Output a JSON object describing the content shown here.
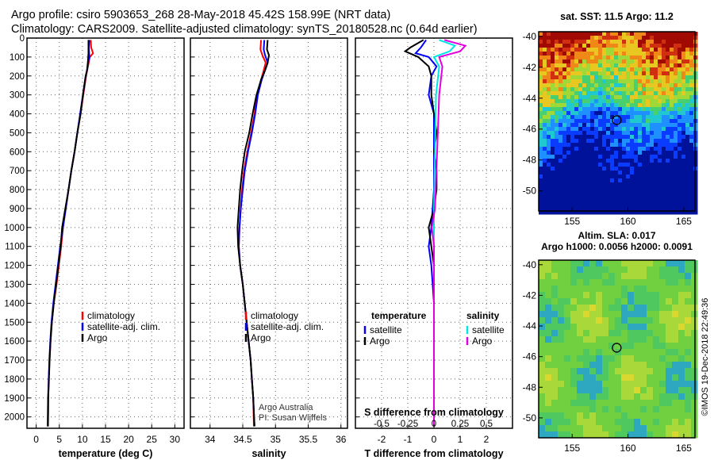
{
  "title": {
    "line1": "Argo profile: csiro 5903653_268 28-May-2018 45.42S 158.99E (NRT data)",
    "line2": "Climatology: CARS2009. Satellite-adjusted climatology: synTS_20180528.nc (0.64d earlier)"
  },
  "credit": {
    "line1": "Argo Australia",
    "line2": "PI: Susan Wijffels"
  },
  "imos_stamp": "©IMOS 19-Dec-2018 22:49:36",
  "colors": {
    "climatology": "#ff0000",
    "satellite": "#0000ff",
    "argo": "#000000",
    "sal_satellite": "#00e5e5",
    "sal_argo": "#e000e0"
  },
  "chart_data": [
    {
      "type": "line",
      "id": "temperature",
      "xlabel": "temperature (deg C)",
      "xlim": [
        -2,
        32
      ],
      "ylim": [
        2060,
        0
      ],
      "xticks": [
        0,
        5,
        10,
        15,
        20,
        25,
        30
      ],
      "yticks": [
        0,
        100,
        200,
        300,
        400,
        500,
        600,
        700,
        800,
        900,
        1000,
        1100,
        1200,
        1300,
        1400,
        1500,
        1600,
        1700,
        1800,
        1900,
        2000
      ],
      "legend": [
        "climatology",
        "satellite-adj. clim.",
        "Argo"
      ],
      "legend_position": "lower-right",
      "series": [
        {
          "name": "climatology",
          "color": "#ff0000",
          "points": [
            [
              11.8,
              10
            ],
            [
              11.9,
              50
            ],
            [
              12.3,
              80
            ],
            [
              11.6,
              100
            ],
            [
              11.2,
              150
            ],
            [
              10.8,
              200
            ],
            [
              10.2,
              300
            ],
            [
              9.6,
              400
            ],
            [
              8.9,
              500
            ],
            [
              8.3,
              600
            ],
            [
              7.6,
              700
            ],
            [
              7.0,
              800
            ],
            [
              6.4,
              900
            ],
            [
              5.8,
              1000
            ],
            [
              5.4,
              1100
            ],
            [
              4.9,
              1200
            ],
            [
              4.4,
              1300
            ],
            [
              3.8,
              1400
            ],
            [
              3.4,
              1500
            ],
            [
              3.1,
              1600
            ],
            [
              2.9,
              1700
            ],
            [
              2.7,
              1800
            ],
            [
              2.55,
              1900
            ],
            [
              2.45,
              2050
            ]
          ]
        },
        {
          "name": "satellite-adj. clim.",
          "color": "#0000ff",
          "points": [
            [
              11.5,
              10
            ],
            [
              11.4,
              60
            ],
            [
              11.5,
              90
            ],
            [
              11.3,
              120
            ],
            [
              11.0,
              170
            ],
            [
              10.7,
              200
            ],
            [
              10.1,
              300
            ],
            [
              9.5,
              400
            ],
            [
              8.9,
              500
            ],
            [
              8.3,
              600
            ],
            [
              7.6,
              700
            ],
            [
              7.0,
              800
            ],
            [
              6.4,
              900
            ],
            [
              5.8,
              1000
            ],
            [
              5.2,
              1100
            ],
            [
              4.7,
              1200
            ],
            [
              4.2,
              1300
            ],
            [
              3.7,
              1400
            ],
            [
              3.3,
              1500
            ],
            [
              3.05,
              1600
            ],
            [
              2.85,
              1700
            ],
            [
              2.7,
              1800
            ],
            [
              2.6,
              1900
            ],
            [
              2.55,
              2050
            ]
          ]
        },
        {
          "name": "Argo",
          "color": "#000000",
          "points": [
            [
              11.3,
              10
            ],
            [
              11.3,
              80
            ],
            [
              11.2,
              120
            ],
            [
              11.0,
              170
            ],
            [
              10.7,
              200
            ],
            [
              10.1,
              300
            ],
            [
              9.6,
              400
            ],
            [
              8.9,
              500
            ],
            [
              8.3,
              600
            ],
            [
              7.6,
              700
            ],
            [
              7.0,
              800
            ],
            [
              6.3,
              900
            ],
            [
              5.6,
              1000
            ],
            [
              5.3,
              1100
            ],
            [
              4.8,
              1200
            ],
            [
              4.3,
              1300
            ],
            [
              3.8,
              1400
            ],
            [
              3.4,
              1500
            ],
            [
              3.1,
              1600
            ],
            [
              2.9,
              1700
            ],
            [
              2.75,
              1800
            ],
            [
              2.6,
              1900
            ],
            [
              2.55,
              2050
            ]
          ]
        }
      ]
    },
    {
      "type": "line",
      "id": "salinity",
      "xlabel": "salinity",
      "xlim": [
        33.7,
        36.1
      ],
      "ylim": [
        2060,
        0
      ],
      "xticks": [
        34,
        34.5,
        35,
        35.5,
        36
      ],
      "xticklabels": [
        "34",
        "34.5",
        "35",
        "35.5",
        "36"
      ],
      "legend": [
        "climatology",
        "satellite-adj. clim.",
        "Argo"
      ],
      "legend_position": "lower-right",
      "series": [
        {
          "name": "climatology",
          "color": "#ff0000",
          "points": [
            [
              34.78,
              10
            ],
            [
              34.77,
              60
            ],
            [
              34.8,
              90
            ],
            [
              34.85,
              130
            ],
            [
              34.82,
              170
            ],
            [
              34.78,
              220
            ],
            [
              34.72,
              300
            ],
            [
              34.68,
              400
            ],
            [
              34.63,
              500
            ],
            [
              34.57,
              600
            ],
            [
              34.52,
              700
            ],
            [
              34.49,
              800
            ],
            [
              34.47,
              900
            ],
            [
              34.45,
              1000
            ],
            [
              34.44,
              1100
            ],
            [
              34.46,
              1200
            ],
            [
              34.5,
              1300
            ],
            [
              34.53,
              1400
            ],
            [
              34.56,
              1500
            ],
            [
              34.59,
              1600
            ],
            [
              34.62,
              1700
            ],
            [
              34.64,
              1800
            ],
            [
              34.66,
              1900
            ],
            [
              34.67,
              2050
            ]
          ]
        },
        {
          "name": "satellite-adj. clim.",
          "color": "#0000ff",
          "points": [
            [
              34.83,
              10
            ],
            [
              34.82,
              60
            ],
            [
              34.84,
              90
            ],
            [
              34.88,
              130
            ],
            [
              34.84,
              170
            ],
            [
              34.79,
              220
            ],
            [
              34.73,
              300
            ],
            [
              34.69,
              400
            ],
            [
              34.64,
              500
            ],
            [
              34.58,
              600
            ],
            [
              34.53,
              700
            ],
            [
              34.5,
              800
            ],
            [
              34.47,
              900
            ],
            [
              34.45,
              1000
            ],
            [
              34.44,
              1100
            ],
            [
              34.46,
              1200
            ],
            [
              34.5,
              1300
            ],
            [
              34.53,
              1400
            ],
            [
              34.56,
              1500
            ],
            [
              34.59,
              1600
            ],
            [
              34.62,
              1700
            ],
            [
              34.64,
              1800
            ],
            [
              34.66,
              1900
            ],
            [
              34.68,
              2050
            ]
          ]
        },
        {
          "name": "Argo",
          "color": "#000000",
          "points": [
            [
              34.88,
              10
            ],
            [
              34.87,
              60
            ],
            [
              34.9,
              90
            ],
            [
              34.88,
              130
            ],
            [
              34.84,
              170
            ],
            [
              34.78,
              220
            ],
            [
              34.71,
              300
            ],
            [
              34.65,
              400
            ],
            [
              34.6,
              500
            ],
            [
              34.53,
              600
            ],
            [
              34.49,
              700
            ],
            [
              34.46,
              800
            ],
            [
              34.44,
              900
            ],
            [
              34.42,
              1000
            ],
            [
              34.43,
              1100
            ],
            [
              34.46,
              1200
            ],
            [
              34.5,
              1300
            ],
            [
              34.53,
              1400
            ],
            [
              34.56,
              1500
            ],
            [
              34.59,
              1600
            ],
            [
              34.62,
              1700
            ],
            [
              34.64,
              1800
            ],
            [
              34.66,
              1900
            ],
            [
              34.68,
              2050
            ]
          ]
        }
      ]
    },
    {
      "type": "line",
      "id": "difference",
      "xlabel": "T difference from climatology",
      "xlim": [
        -3,
        3
      ],
      "ylim": [
        2060,
        0
      ],
      "xticks": [
        -2,
        -1,
        0,
        1,
        2
      ],
      "secondary_xlabel": "S difference from climatology",
      "secondary_xticks": [
        -0.5,
        -0.25,
        0,
        0.25,
        0.5
      ],
      "secondary_xticklabels": [
        "-0.5",
        "-0.25",
        "0",
        "0.25",
        "0.5"
      ],
      "legend_temperature": {
        "title": "temperature",
        "entries": [
          "satellite",
          "Argo"
        ]
      },
      "legend_salinity": {
        "title": "salinity",
        "entries": [
          "satellite",
          "Argo"
        ]
      },
      "series": [
        {
          "name": "temperature satellite",
          "color": "#0000ff",
          "points": [
            [
              -0.3,
              10
            ],
            [
              -0.5,
              50
            ],
            [
              -0.7,
              80
            ],
            [
              -0.2,
              100
            ],
            [
              0.1,
              150
            ],
            [
              -0.1,
              200
            ],
            [
              -0.2,
              300
            ],
            [
              0.0,
              400
            ],
            [
              0.0,
              600
            ],
            [
              0.0,
              800
            ],
            [
              -0.1,
              1000
            ],
            [
              -0.2,
              1100
            ],
            [
              -0.1,
              1200
            ],
            [
              0.0,
              1400
            ],
            [
              0.0,
              2050
            ]
          ]
        },
        {
          "name": "temperature Argo",
          "color": "#000000",
          "points": [
            [
              -0.4,
              10
            ],
            [
              -0.9,
              50
            ],
            [
              -1.1,
              70
            ],
            [
              -0.6,
              100
            ],
            [
              -0.2,
              150
            ],
            [
              -0.1,
              200
            ],
            [
              -0.1,
              300
            ],
            [
              0.0,
              400
            ],
            [
              0.1,
              500
            ],
            [
              0.0,
              600
            ],
            [
              0.1,
              700
            ],
            [
              0.1,
              800
            ],
            [
              0.0,
              900
            ],
            [
              -0.2,
              1000
            ],
            [
              -0.1,
              1100
            ],
            [
              0.0,
              1200
            ],
            [
              0.0,
              1400
            ],
            [
              0.0,
              2050
            ]
          ]
        },
        {
          "name": "salinity satellite",
          "color": "#00e5e5",
          "points": [
            [
              0.05,
              10
            ],
            [
              0.2,
              40
            ],
            [
              0.15,
              70
            ],
            [
              0.0,
              100
            ],
            [
              0.05,
              150
            ],
            [
              0.02,
              300
            ],
            [
              0.01,
              600
            ],
            [
              0.0,
              900
            ],
            [
              0.0,
              1200
            ],
            [
              0.0,
              2050
            ]
          ]
        },
        {
          "name": "salinity Argo",
          "color": "#e000e0",
          "points": [
            [
              0.1,
              10
            ],
            [
              0.3,
              40
            ],
            [
              0.25,
              70
            ],
            [
              0.05,
              100
            ],
            [
              0.08,
              150
            ],
            [
              0.05,
              300
            ],
            [
              0.03,
              600
            ],
            [
              0.01,
              900
            ],
            [
              -0.02,
              1000
            ],
            [
              0.0,
              1100
            ],
            [
              0.0,
              1200
            ],
            [
              0.0,
              2050
            ]
          ]
        }
      ]
    },
    {
      "type": "heatmap",
      "id": "sst_map",
      "title": "sat. SST: 11.5 Argo: 11.2",
      "xlim": [
        152,
        166
      ],
      "ylim": [
        -51.3,
        -39.7
      ],
      "xticks": [
        155,
        160,
        165
      ],
      "yticks": [
        -40,
        -42,
        -44,
        -46,
        -48,
        -50
      ],
      "marker": {
        "lon": 158.99,
        "lat": -45.42
      }
    },
    {
      "type": "heatmap",
      "id": "sla_map",
      "title_line1": "Altim. SLA: 0.017",
      "title_line2": "Argo h1000: 0.0056 h2000: 0.0091",
      "xlim": [
        152,
        166
      ],
      "ylim": [
        -51.3,
        -39.7
      ],
      "xticks": [
        155,
        160,
        165
      ],
      "yticks": [
        -40,
        -42,
        -44,
        -46,
        -48,
        -50
      ],
      "marker": {
        "lon": 158.99,
        "lat": -45.42
      }
    }
  ]
}
